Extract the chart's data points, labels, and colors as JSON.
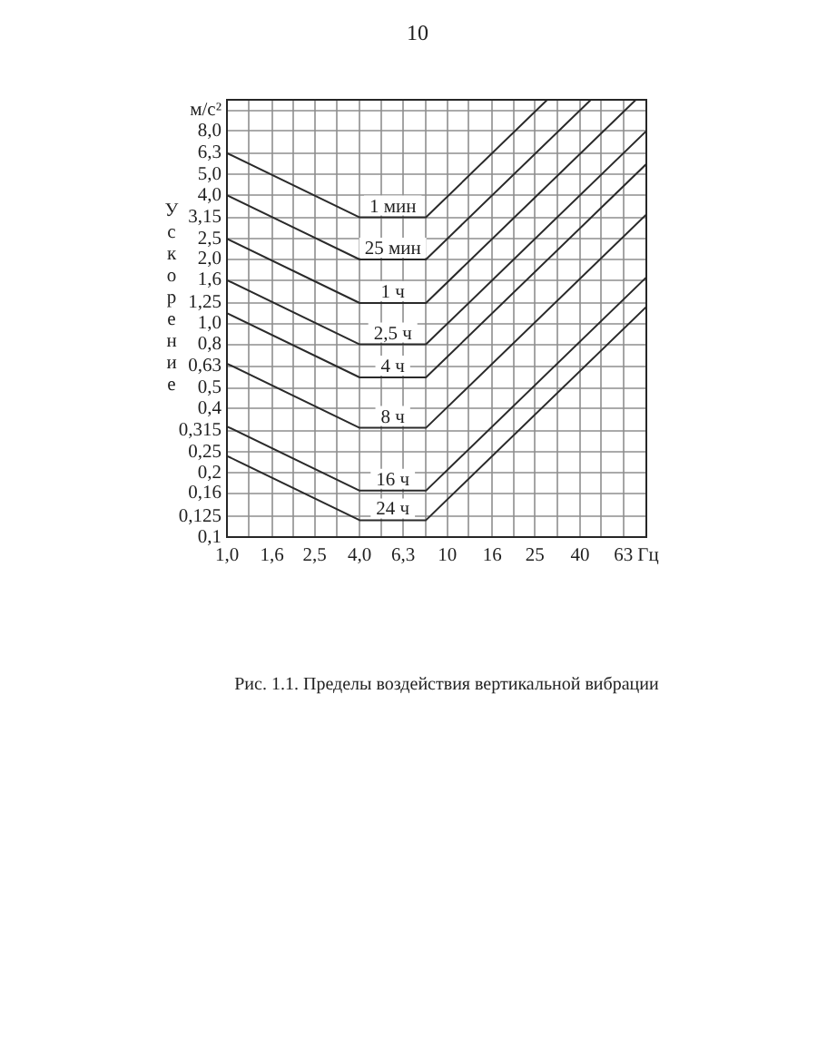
{
  "chart_data": {
    "type": "line",
    "title": "Рис. 1.1. Пределы воздействия вертикальной вибрации",
    "xlabel": "Гц",
    "ylabel": "Ускорение",
    "annotations": [
      "10"
    ],
    "log": "xy",
    "grid": true,
    "xlim": [
      1,
      80
    ],
    "ylim": [
      0.1,
      11.2
    ],
    "xticks": [
      {
        "value": 1,
        "label": "1,0"
      },
      {
        "value": 1.25,
        "label": null
      },
      {
        "value": 1.6,
        "label": "1,6"
      },
      {
        "value": 2,
        "label": null
      },
      {
        "value": 2.5,
        "label": "2,5"
      },
      {
        "value": 3.15,
        "label": null
      },
      {
        "value": 4,
        "label": "4,0"
      },
      {
        "value": 5,
        "label": null
      },
      {
        "value": 6.3,
        "label": "6,3"
      },
      {
        "value": 8,
        "label": null
      },
      10,
      {
        "value": 12.5,
        "label": null
      },
      16,
      {
        "value": 20,
        "label": null
      },
      25,
      {
        "value": 31.5,
        "label": null
      },
      40,
      {
        "value": 50,
        "label": null
      },
      63,
      {
        "value": 80,
        "label": null
      }
    ],
    "yticks": [
      {
        "value": 0.1,
        "label": "0,1"
      },
      {
        "value": 0.125,
        "label": "0,125"
      },
      {
        "value": 0.16,
        "label": "0,16"
      },
      {
        "value": 0.2,
        "label": "0,2"
      },
      {
        "value": 0.25,
        "label": "0,25"
      },
      {
        "value": 0.315,
        "label": "0,315"
      },
      {
        "value": 0.4,
        "label": "0,4"
      },
      {
        "value": 0.5,
        "label": "0,5"
      },
      {
        "value": 0.63,
        "label": "0,63"
      },
      {
        "value": 0.8,
        "label": "0,8"
      },
      {
        "value": 1,
        "label": "1,0"
      },
      {
        "value": 1.25,
        "label": "1,25"
      },
      {
        "value": 1.6,
        "label": "1,6"
      },
      {
        "value": 2,
        "label": "2,0"
      },
      {
        "value": 2.5,
        "label": "2,5"
      },
      {
        "value": 3.15,
        "label": "3,15"
      },
      {
        "value": 4,
        "label": "4,0"
      },
      {
        "value": 5,
        "label": "5,0"
      },
      {
        "value": 6.3,
        "label": "6,3"
      },
      {
        "value": 8,
        "label": "8,0"
      },
      {
        "value": 10,
        "label": "м/с²"
      }
    ],
    "series": [
      {
        "name": "1 мин",
        "color": "#2a2a2a",
        "x": [
          1,
          4,
          8,
          28.4
        ],
        "values": [
          6.3,
          3.15,
          3.15,
          11.2
        ]
      },
      {
        "name": "25 мин",
        "color": "#2a2a2a",
        "x": [
          1,
          4,
          8,
          44.8
        ],
        "values": [
          4,
          2,
          2,
          11.2
        ]
      },
      {
        "name": "1 ч",
        "color": "#2a2a2a",
        "x": [
          1,
          4,
          8,
          71.7
        ],
        "values": [
          2.5,
          1.25,
          1.25,
          11.2
        ]
      },
      {
        "name": "2,5 ч",
        "color": "#2a2a2a",
        "x": [
          1,
          4,
          8,
          80
        ],
        "values": [
          1.6,
          0.8,
          0.8,
          8
        ]
      },
      {
        "name": "4 ч",
        "color": "#2a2a2a",
        "x": [
          1,
          4,
          8,
          80
        ],
        "values": [
          1.12,
          0.56,
          0.56,
          5.6
        ]
      },
      {
        "name": "8 ч",
        "color": "#2a2a2a",
        "x": [
          1,
          4,
          8,
          80
        ],
        "values": [
          0.65,
          0.325,
          0.325,
          3.25
        ]
      },
      {
        "name": "16 ч",
        "color": "#2a2a2a",
        "x": [
          1,
          4,
          8,
          80
        ],
        "values": [
          0.33,
          0.165,
          0.165,
          1.65
        ]
      },
      {
        "name": "24 ч",
        "color": "#2a2a2a",
        "x": [
          1,
          4,
          8,
          80
        ],
        "values": [
          0.24,
          0.12,
          0.12,
          1.2
        ]
      }
    ]
  }
}
